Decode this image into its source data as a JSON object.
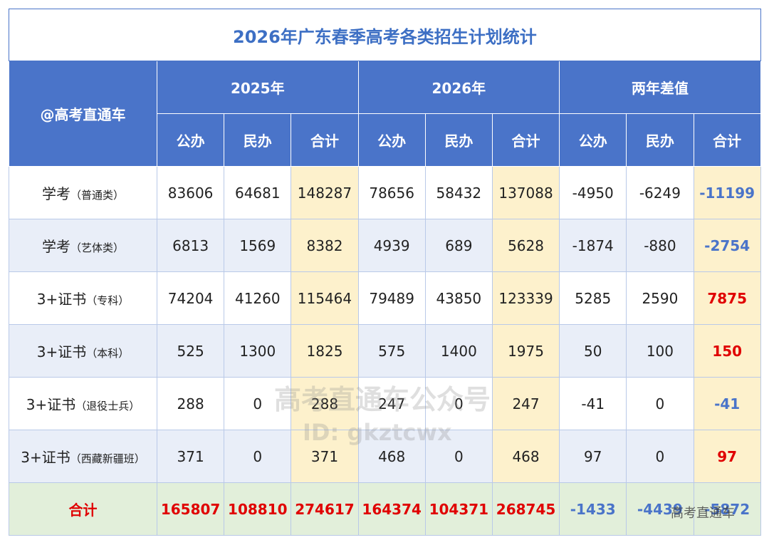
{
  "title": "2026年广东春季高考各类招生计划统计",
  "table": {
    "corner": "@高考直通车",
    "groups": [
      "2025年",
      "2026年",
      "两年差值"
    ],
    "subheaders": [
      "公办",
      "民办",
      "合计",
      "公办",
      "民办",
      "合计",
      "公办",
      "民办",
      "合计"
    ],
    "rows": [
      {
        "label": "学考",
        "note": "（普通类）",
        "values": [
          83606,
          64681,
          148287,
          78656,
          58432,
          137088,
          -4950,
          -6249,
          -11199
        ]
      },
      {
        "label": "学考",
        "note": "（艺体类）",
        "values": [
          6813,
          1569,
          8382,
          4939,
          689,
          5628,
          -1874,
          -880,
          -2754
        ]
      },
      {
        "label": "3+证书",
        "note": "（专科）",
        "values": [
          74204,
          41260,
          115464,
          79489,
          43850,
          123339,
          5285,
          2590,
          7875
        ]
      },
      {
        "label": "3+证书",
        "note": "（本科）",
        "values": [
          525,
          1300,
          1825,
          575,
          1400,
          1975,
          50,
          100,
          150
        ]
      },
      {
        "label": "3+证书",
        "note": "（退役士兵）",
        "values": [
          288,
          0,
          288,
          247,
          0,
          247,
          -41,
          0,
          -41
        ]
      },
      {
        "label": "3+证书",
        "note": "（西藏新疆班）",
        "values": [
          371,
          0,
          371,
          468,
          0,
          468,
          97,
          0,
          97
        ]
      }
    ],
    "total": {
      "label": "合计",
      "values": [
        165807,
        108810,
        274617,
        164374,
        104371,
        268745,
        -1433,
        -4439,
        -5872
      ]
    }
  },
  "watermark": [
    "高考直通车公众号",
    "ID: gkztcwx",
    "高考直通车"
  ]
}
